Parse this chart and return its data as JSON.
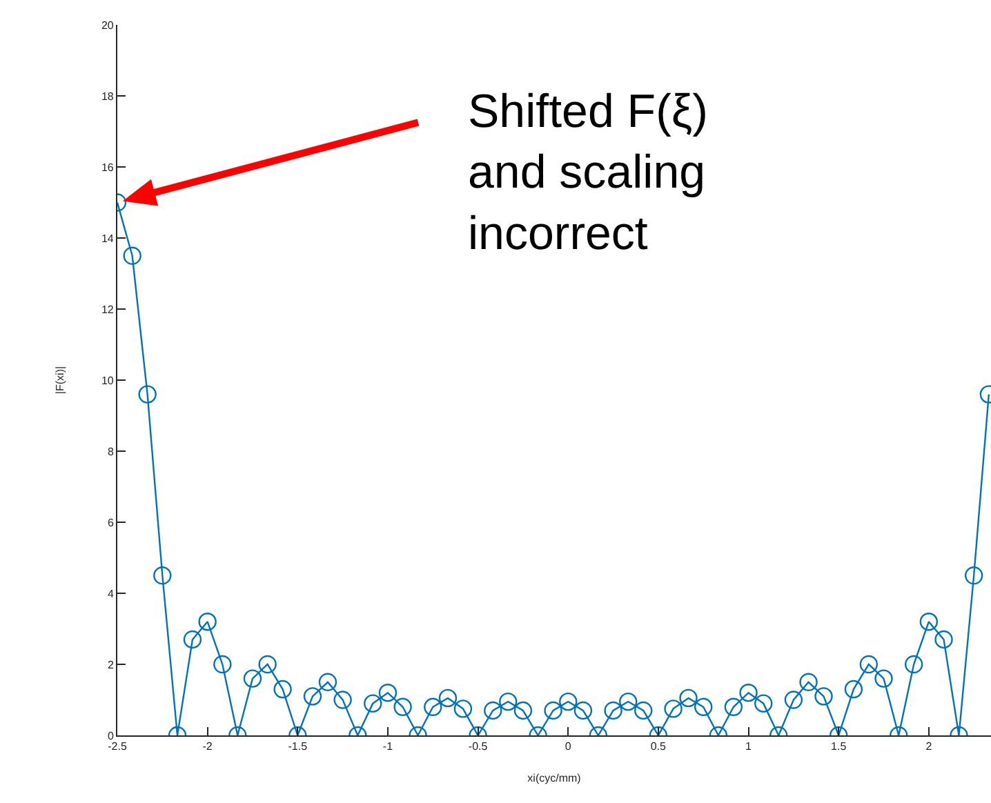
{
  "chart_data": {
    "type": "line",
    "xlabel": "xi(cyc/mm)",
    "ylabel": "|F(xi)|",
    "x": [
      -2.5,
      -2.417,
      -2.333,
      -2.25,
      -2.167,
      -2.083,
      -2.0,
      -1.917,
      -1.833,
      -1.75,
      -1.667,
      -1.583,
      -1.5,
      -1.417,
      -1.333,
      -1.25,
      -1.167,
      -1.083,
      -1.0,
      -0.917,
      -0.833,
      -0.75,
      -0.667,
      -0.583,
      -0.5,
      -0.417,
      -0.333,
      -0.25,
      -0.167,
      -0.083,
      0.0,
      0.083,
      0.167,
      0.25,
      0.333,
      0.417,
      0.5,
      0.583,
      0.667,
      0.75,
      0.833,
      0.917,
      1.0,
      1.083,
      1.167,
      1.25,
      1.333,
      1.417,
      1.5,
      1.583,
      1.667,
      1.75,
      1.833,
      1.917,
      2.0,
      2.083,
      2.167,
      2.25,
      2.333
    ],
    "series": [
      {
        "color": "#0072bd",
        "values": [
          15,
          13.5,
          9.6,
          4.5,
          0,
          2.7,
          3.2,
          2.0,
          0,
          1.6,
          2.0,
          1.3,
          0,
          1.1,
          1.5,
          1.0,
          0,
          0.9,
          1.2,
          0.8,
          0,
          0.8,
          1.05,
          0.75,
          0,
          0.7,
          0.95,
          0.7,
          0,
          0.7,
          0.95,
          0.7,
          0,
          0.7,
          0.95,
          0.7,
          0,
          0.75,
          1.05,
          0.8,
          0,
          0.8,
          1.2,
          0.9,
          0,
          1.0,
          1.5,
          1.1,
          0,
          1.3,
          2.0,
          1.6,
          0,
          2.0,
          3.2,
          2.7,
          0,
          4.5,
          9.6
        ]
      }
    ],
    "xlim": [
      -2.5,
      2.345
    ],
    "xticks": [
      -2.5,
      -2,
      -1.5,
      -1,
      -0.5,
      0,
      0.5,
      1,
      1.5,
      2
    ],
    "ylim": [
      0,
      20
    ],
    "yticks": [
      0,
      2,
      4,
      6,
      8,
      10,
      12,
      14,
      16,
      18,
      20
    ],
    "marker": "circle",
    "line_style": "solid",
    "annotations": [
      "Shifted F(ξ)\nand scaling\nincorrect"
    ]
  }
}
